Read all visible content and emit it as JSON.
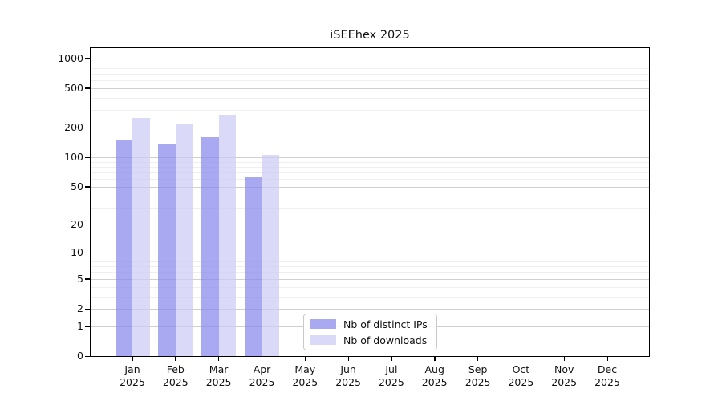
{
  "figure": {
    "title": "iSEEhex 2025",
    "background": "#ffffff"
  },
  "chart_data": {
    "type": "bar",
    "title": "iSEEhex 2025",
    "categories": [
      "Jan",
      "Feb",
      "Mar",
      "Apr",
      "May",
      "Jun",
      "Jul",
      "Aug",
      "Sep",
      "Oct",
      "Nov",
      "Dec"
    ],
    "category_year": "2025",
    "series": [
      {
        "name": "Nb of distinct IPs",
        "color": "rgba(136,136,236,0.72)",
        "values": [
          150,
          135,
          160,
          63,
          0,
          0,
          0,
          0,
          0,
          0,
          0,
          0
        ]
      },
      {
        "name": "Nb of downloads",
        "color": "rgba(204,204,245,0.72)",
        "values": [
          250,
          220,
          270,
          105,
          0,
          0,
          0,
          0,
          0,
          0,
          0,
          0
        ]
      }
    ],
    "xlabel": "",
    "ylabel": "",
    "yscale": "log1p",
    "ylim": [
      0,
      1280
    ],
    "yticks": [
      0,
      1,
      2,
      5,
      10,
      20,
      50,
      100,
      200,
      500,
      1000
    ],
    "minor_yticks": [
      3,
      4,
      6,
      7,
      8,
      9,
      30,
      40,
      60,
      70,
      80,
      90,
      300,
      400,
      600,
      700,
      800,
      900
    ],
    "grid": true,
    "legend_position": "lower-center",
    "colors": {
      "major_grid": "#d0d0d0",
      "minor_grid": "#efefef",
      "axis": "#000000",
      "distinct_ips": "rgba(136,136,236,0.72)",
      "downloads": "rgba(204,204,245,0.72)"
    }
  }
}
